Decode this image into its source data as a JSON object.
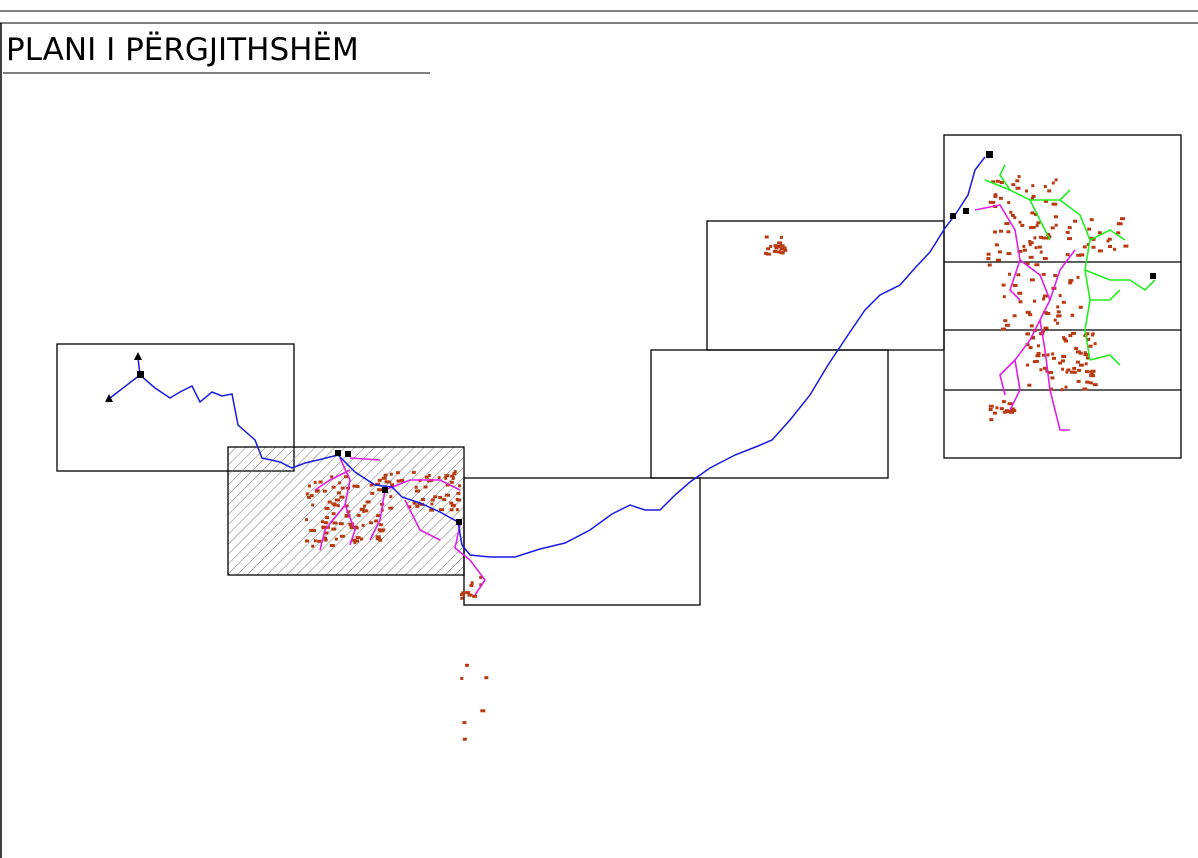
{
  "header": {
    "title": "PLANI I PËRGJITHSHËM"
  }
}
